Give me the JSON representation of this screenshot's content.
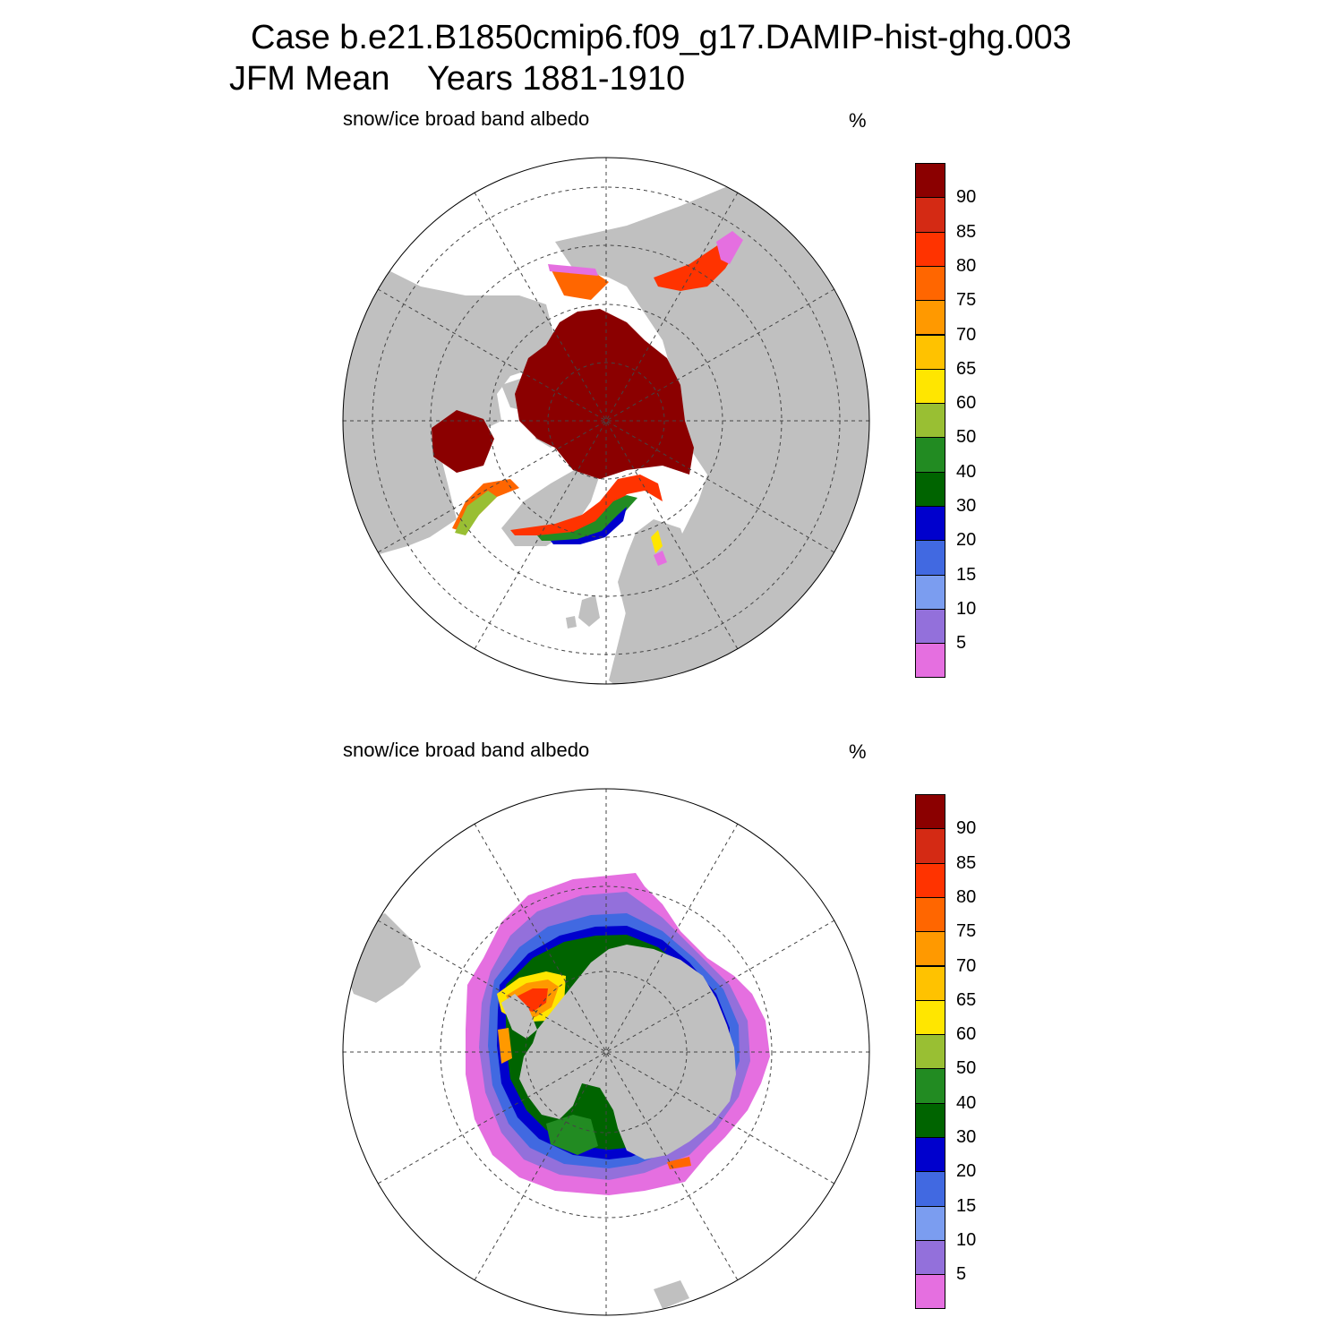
{
  "title": {
    "line1": "Case b.e21.B1850cmip6.f09_g17.DAMIP-hist-ghg.003",
    "line2": "JFM Mean    Years 1881-1910"
  },
  "colors": {
    "land": "#c0c0c0",
    "ocean": "#ffffff",
    "grid": "#444444"
  },
  "colorbar": {
    "labels": [
      "90",
      "85",
      "80",
      "75",
      "70",
      "65",
      "60",
      "50",
      "40",
      "30",
      "20",
      "15",
      "10",
      "5"
    ],
    "colors": [
      "#8b0000",
      "#d42a14",
      "#ff3300",
      "#ff6600",
      "#ff9900",
      "#ffc200",
      "#ffe600",
      "#99bf33",
      "#228b22",
      "#006400",
      "#0000cd",
      "#4169e1",
      "#7b9df0",
      "#9370db",
      "#e56fe0"
    ]
  },
  "panels": [
    {
      "id": "north",
      "label": "snow/ice broad band albedo",
      "units": "%"
    },
    {
      "id": "south",
      "label": "snow/ice broad band albedo",
      "units": "%"
    }
  ]
}
